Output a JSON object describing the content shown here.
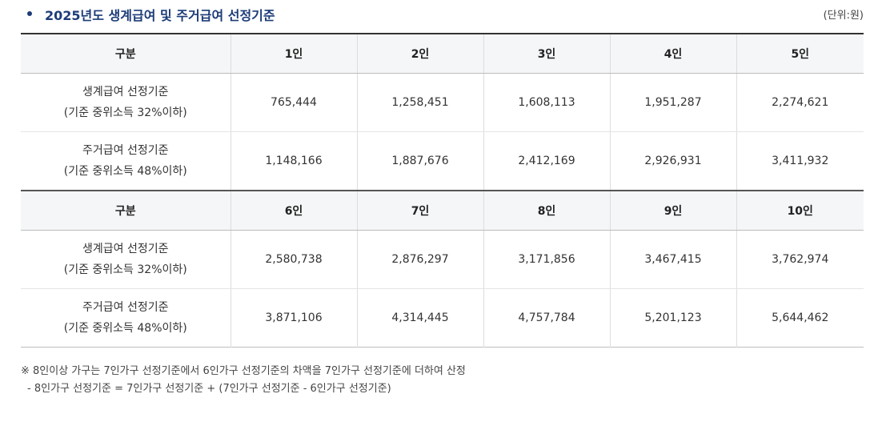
{
  "header": {
    "title": "2025년도 생계급여 및 주거급여 선정기준",
    "unit": "(단위:원)"
  },
  "table": {
    "sections": [
      {
        "header": [
          "구분",
          "1인",
          "2인",
          "3인",
          "4인",
          "5인"
        ],
        "rows": [
          {
            "label_line1": "생계급여 선정기준",
            "label_line2": "(기준 중위소득 32%이하)",
            "values": [
              "765,444",
              "1,258,451",
              "1,608,113",
              "1,951,287",
              "2,274,621"
            ]
          },
          {
            "label_line1": "주거급여 선정기준",
            "label_line2": "(기준 중위소득 48%이하)",
            "values": [
              "1,148,166",
              "1,887,676",
              "2,412,169",
              "2,926,931",
              "3,411,932"
            ]
          }
        ]
      },
      {
        "header": [
          "구분",
          "6인",
          "7인",
          "8인",
          "9인",
          "10인"
        ],
        "rows": [
          {
            "label_line1": "생계급여 선정기준",
            "label_line2": "(기준 중위소득 32%이하)",
            "values": [
              "2,580,738",
              "2,876,297",
              "3,171,856",
              "3,467,415",
              "3,762,974"
            ]
          },
          {
            "label_line1": "주거급여 선정기준",
            "label_line2": "(기준 중위소득 48%이하)",
            "values": [
              "3,871,106",
              "4,314,445",
              "4,757,784",
              "5,201,123",
              "5,644,462"
            ]
          }
        ]
      }
    ]
  },
  "notes": {
    "line1": "※ 8인이상 가구는 7인가구 선정기준에서 6인가구 선정기준의 차액을 7인가구 선정기준에 더하여 산정",
    "line2": "- 8인가구 선정기준 = 7인가구 선정기준 + (7인가구 선정기준 - 6인가구 선정기준)"
  },
  "colors": {
    "title": "#1d3c78",
    "header_bg": "#f5f6f8",
    "text": "#333333"
  }
}
